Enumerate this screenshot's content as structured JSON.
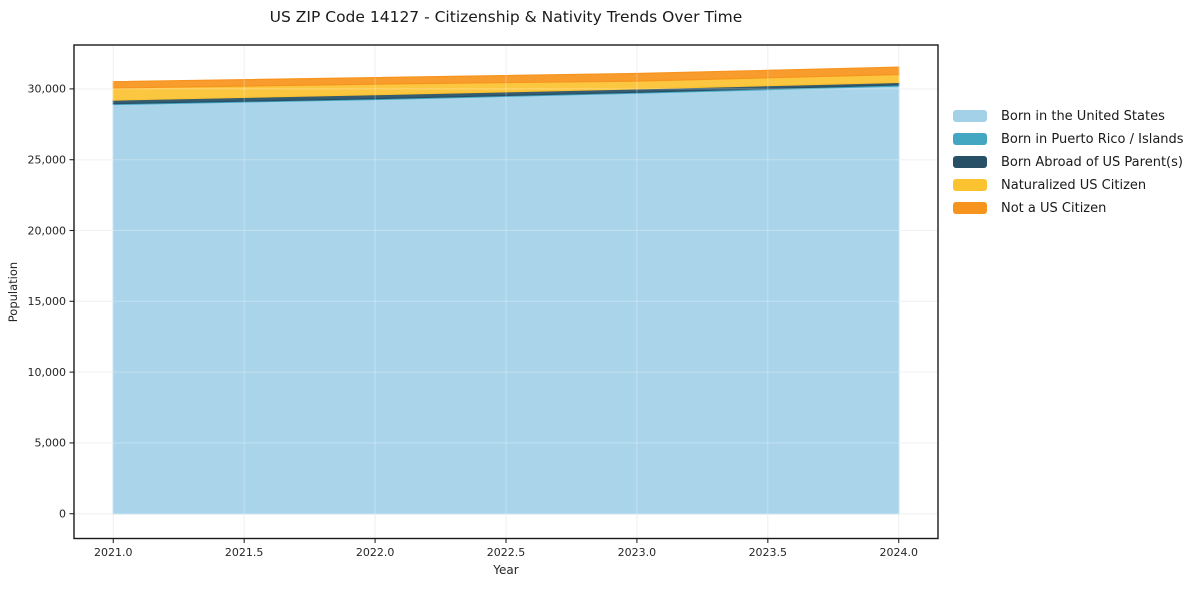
{
  "page": {
    "background": "#ffffff"
  },
  "chart": {
    "title": "US ZIP Code 14127 - Citizenship & Nativity Trends Over Time",
    "xlabel": "Year",
    "ylabel": "Population"
  },
  "chart_data": {
    "type": "area",
    "stacked": true,
    "title": "US ZIP Code 14127 - Citizenship & Nativity Trends Over Time",
    "xlabel": "Year",
    "ylabel": "Population",
    "x": [
      2021,
      2022,
      2023,
      2024
    ],
    "series": [
      {
        "name": "Born in the United States",
        "color": "#a2d1e8",
        "values": [
          28900,
          29250,
          29700,
          30200
        ]
      },
      {
        "name": "Born in Puerto Rico / Islands",
        "color": "#43a7c2",
        "values": [
          60,
          60,
          60,
          80
        ]
      },
      {
        "name": "Born Abroad of US Parent(s)",
        "color": "#275066",
        "values": [
          250,
          280,
          240,
          180
        ]
      },
      {
        "name": "Naturalized US Citizen",
        "color": "#fcc331",
        "values": [
          850,
          750,
          550,
          560
        ]
      },
      {
        "name": "Not a US Citizen",
        "color": "#f7941e",
        "values": [
          450,
          460,
          540,
          520
        ]
      }
    ],
    "x_ticks": [
      2021.0,
      2021.5,
      2022.0,
      2022.5,
      2023.0,
      2023.5,
      2024.0
    ],
    "x_tick_labels": [
      "2021.0",
      "2021.5",
      "2022.0",
      "2022.5",
      "2023.0",
      "2023.5",
      "2024.0"
    ],
    "y_ticks": [
      0,
      5000,
      10000,
      15000,
      20000,
      25000,
      30000
    ],
    "y_tick_labels": [
      "0",
      "5,000",
      "10,000",
      "15,000",
      "20,000",
      "25,000",
      "30,000"
    ],
    "xlim": [
      2020.85,
      2024.15
    ],
    "ylim": [
      -1750,
      33100
    ],
    "grid": true,
    "legend_position": "right",
    "style": {
      "grid_color": "#ebebeb",
      "grid_over_color": "rgba(255,255,255,0.3)",
      "spine_color": "#1a1a1a",
      "tick_color": "#262626",
      "tick_label_color": "#262626",
      "fill_opacity": 0.93
    }
  }
}
